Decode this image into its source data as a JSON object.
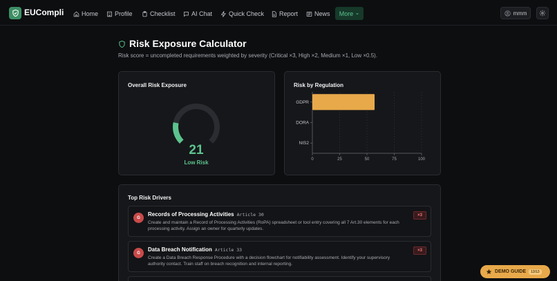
{
  "app": {
    "name": "EUCompli"
  },
  "nav": {
    "items": [
      {
        "label": "Home",
        "icon": "home-icon"
      },
      {
        "label": "Profile",
        "icon": "building-icon"
      },
      {
        "label": "Checklist",
        "icon": "clipboard-icon"
      },
      {
        "label": "AI Chat",
        "icon": "chat-icon"
      },
      {
        "label": "Quick Check",
        "icon": "bolt-icon"
      },
      {
        "label": "Report",
        "icon": "document-icon"
      },
      {
        "label": "News",
        "icon": "newspaper-icon"
      }
    ],
    "more_label": "More",
    "user_label": "mmm"
  },
  "page": {
    "title": "Risk Exposure Calculator",
    "subtitle": "Risk score = uncompleted requirements weighted by severity (Critical ×3, High ×2, Medium ×1, Low ×0.5)."
  },
  "overall": {
    "title": "Overall Risk Exposure",
    "score": "21",
    "score_fraction": 0.21,
    "level": "Low Risk",
    "accent": "#5cc38e"
  },
  "chart_data": {
    "type": "bar",
    "orientation": "horizontal",
    "title": "Risk by Regulation",
    "categories": [
      "GDPR",
      "DORA",
      "NIS2"
    ],
    "values": [
      57,
      0,
      0
    ],
    "xlim": [
      0,
      100
    ],
    "xticks": [
      "0",
      "25",
      "50",
      "75",
      "100"
    ],
    "grid": true,
    "bar_color": "#e8a94a"
  },
  "drivers": {
    "title": "Top Risk Drivers",
    "items": [
      {
        "badge": "G",
        "title": "Records of Processing Activities",
        "article": "Article 30",
        "description": "Create and maintain a Record of Processing Activities (RoPA) spreadsheet or tool entry covering all 7 Art.30 elements for each processing activity. Assign an owner for quarterly updates.",
        "weight": "×3"
      },
      {
        "badge": "G",
        "title": "Data Breach Notification",
        "article": "Article 33",
        "description": "Create a Data Breach Response Procedure with a decision flowchart for notifiability assessment. Identify your supervisory authority contact. Train staff on breach recognition and internal reporting.",
        "weight": "×3"
      }
    ]
  },
  "demo": {
    "label": "DEMO GUIDE",
    "step": "13/13"
  }
}
